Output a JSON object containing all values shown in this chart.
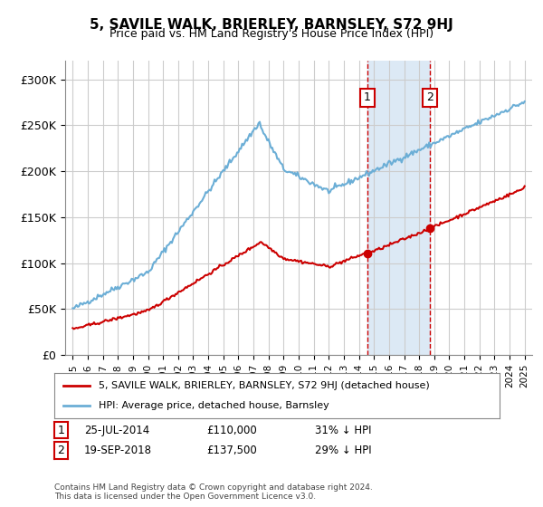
{
  "title": "5, SAVILE WALK, BRIERLEY, BARNSLEY, S72 9HJ",
  "subtitle": "Price paid vs. HM Land Registry's House Price Index (HPI)",
  "ylabel": "",
  "background_color": "#ffffff",
  "plot_bg_color": "#ffffff",
  "grid_color": "#cccccc",
  "transaction1": {
    "date": 2014.56,
    "price": 110000,
    "label": "1"
  },
  "transaction2": {
    "date": 2018.72,
    "price": 137500,
    "label": "2"
  },
  "legend_entry1": "5, SAVILE WALK, BRIERLEY, BARNSLEY, S72 9HJ (detached house)",
  "legend_entry2": "HPI: Average price, detached house, Barnsley",
  "table_row1": [
    "1",
    "25-JUL-2014",
    "£110,000",
    "31% ↓ HPI"
  ],
  "table_row2": [
    "2",
    "19-SEP-2018",
    "£137,500",
    "29% ↓ HPI"
  ],
  "footnote": "Contains HM Land Registry data © Crown copyright and database right 2024.\nThis data is licensed under the Open Government Licence v3.0.",
  "ylim": [
    0,
    320000
  ],
  "xlim_start": 1994.5,
  "xlim_end": 2025.5,
  "hpi_color": "#6baed6",
  "price_color": "#cc0000",
  "highlight_color": "#dce9f5",
  "vline_color": "#cc0000",
  "marker_color": "#cc0000"
}
